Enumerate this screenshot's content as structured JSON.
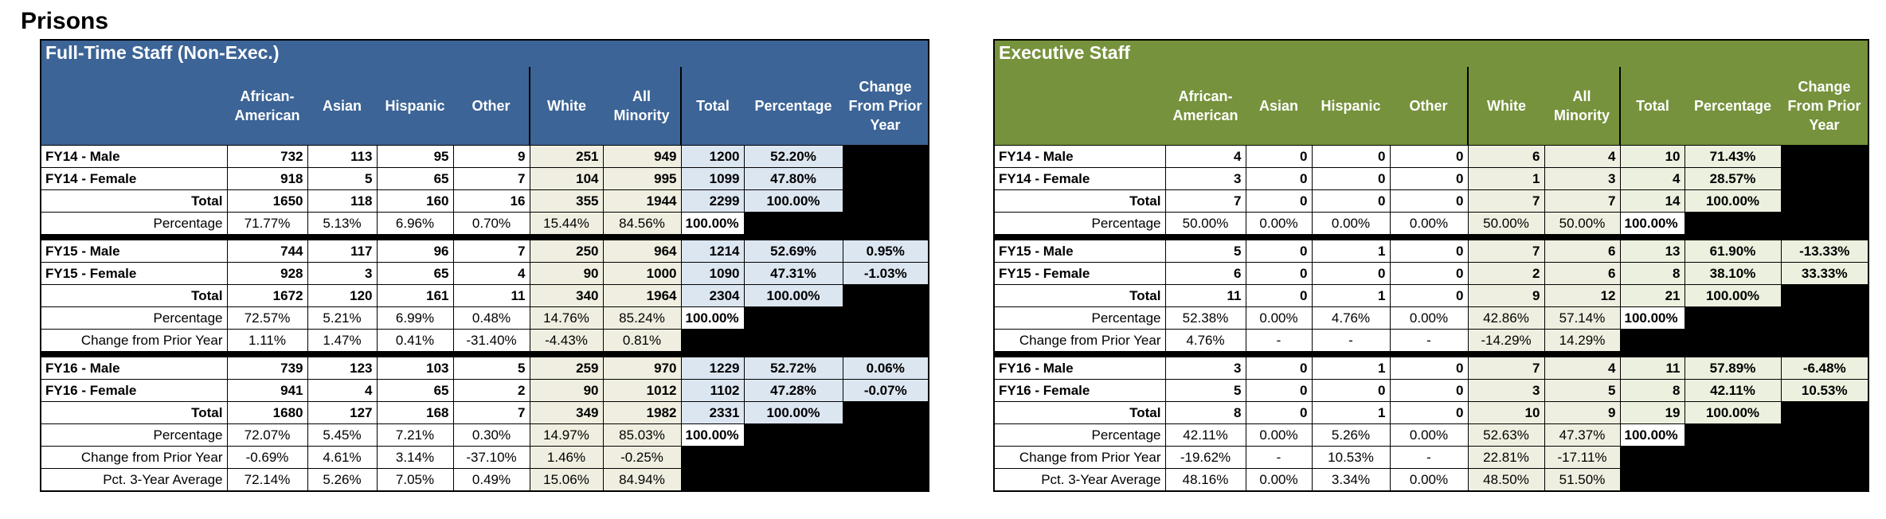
{
  "title": "Prisons",
  "tables": [
    {
      "title": "Full-Time Staff (Non-Exec.)",
      "columns": [
        "African-American",
        "Asian",
        "Hispanic",
        "Other",
        "White",
        "All Minority",
        "Total",
        "Percentage",
        "Change From Prior Year"
      ],
      "groups": [
        [
          {
            "label": "FY14 - Male",
            "cells": [
              732,
              113,
              95,
              9,
              251,
              949,
              1200,
              "52.20%"
            ]
          },
          {
            "label": "FY14 - Female",
            "cells": [
              918,
              5,
              65,
              7,
              104,
              995,
              1099,
              "47.80%"
            ]
          },
          {
            "label": "Total",
            "cells": [
              1650,
              118,
              160,
              16,
              355,
              1944,
              2299,
              "100.00%"
            ]
          },
          {
            "label": "Percentage",
            "cells": [
              "71.77%",
              "5.13%",
              "6.96%",
              "0.70%",
              "15.44%",
              "84.56%",
              "100.00%"
            ]
          }
        ],
        [
          {
            "label": "FY15 - Male",
            "cells": [
              744,
              117,
              96,
              7,
              250,
              964,
              1214,
              "52.69%",
              "0.95%"
            ]
          },
          {
            "label": "FY15 - Female",
            "cells": [
              928,
              3,
              65,
              4,
              90,
              1000,
              1090,
              "47.31%",
              "-1.03%"
            ]
          },
          {
            "label": "Total",
            "cells": [
              1672,
              120,
              161,
              11,
              340,
              1964,
              2304,
              "100.00%"
            ]
          },
          {
            "label": "Percentage",
            "cells": [
              "72.57%",
              "5.21%",
              "6.99%",
              "0.48%",
              "14.76%",
              "85.24%",
              "100.00%"
            ]
          },
          {
            "label": "Change from Prior Year",
            "cells": [
              "1.11%",
              "1.47%",
              "0.41%",
              "-31.40%",
              "-4.43%",
              "0.81%"
            ]
          }
        ],
        [
          {
            "label": "FY16 - Male",
            "cells": [
              739,
              123,
              103,
              5,
              259,
              970,
              1229,
              "52.72%",
              "0.06%"
            ]
          },
          {
            "label": "FY16 - Female",
            "cells": [
              941,
              4,
              65,
              2,
              90,
              1012,
              1102,
              "47.28%",
              "-0.07%"
            ]
          },
          {
            "label": "Total",
            "cells": [
              1680,
              127,
              168,
              7,
              349,
              1982,
              2331,
              "100.00%"
            ]
          },
          {
            "label": "Percentage",
            "cells": [
              "72.07%",
              "5.45%",
              "7.21%",
              "0.30%",
              "14.97%",
              "85.03%",
              "100.00%"
            ]
          },
          {
            "label": "Change from Prior Year",
            "cells": [
              "-0.69%",
              "4.61%",
              "3.14%",
              "-37.10%",
              "1.46%",
              "-0.25%"
            ]
          },
          {
            "label": "Pct. 3-Year Average",
            "cells": [
              "72.14%",
              "5.26%",
              "7.05%",
              "0.49%",
              "15.06%",
              "84.94%"
            ]
          }
        ]
      ]
    },
    {
      "title": "Executive Staff",
      "columns": [
        "African-American",
        "Asian",
        "Hispanic",
        "Other",
        "White",
        "All Minority",
        "Total",
        "Percentage",
        "Change From Prior Year"
      ],
      "groups": [
        [
          {
            "label": "FY14 - Male",
            "cells": [
              4,
              0,
              0,
              0,
              6,
              4,
              10,
              "71.43%"
            ]
          },
          {
            "label": "FY14 - Female",
            "cells": [
              3,
              0,
              0,
              0,
              1,
              3,
              4,
              "28.57%"
            ]
          },
          {
            "label": "Total",
            "cells": [
              7,
              0,
              0,
              0,
              7,
              7,
              14,
              "100.00%"
            ]
          },
          {
            "label": "Percentage",
            "cells": [
              "50.00%",
              "0.00%",
              "0.00%",
              "0.00%",
              "50.00%",
              "50.00%",
              "100.00%"
            ]
          }
        ],
        [
          {
            "label": "FY15 - Male",
            "cells": [
              5,
              0,
              1,
              0,
              7,
              6,
              13,
              "61.90%",
              "-13.33%"
            ]
          },
          {
            "label": "FY15 - Female",
            "cells": [
              6,
              0,
              0,
              0,
              2,
              6,
              8,
              "38.10%",
              "33.33%"
            ]
          },
          {
            "label": "Total",
            "cells": [
              11,
              0,
              1,
              0,
              9,
              12,
              21,
              "100.00%"
            ]
          },
          {
            "label": "Percentage",
            "cells": [
              "52.38%",
              "0.00%",
              "4.76%",
              "0.00%",
              "42.86%",
              "57.14%",
              "100.00%"
            ]
          },
          {
            "label": "Change from Prior Year",
            "cells": [
              "4.76%",
              "-",
              "-",
              "-",
              "-14.29%",
              "14.29%"
            ]
          }
        ],
        [
          {
            "label": "FY16 - Male",
            "cells": [
              3,
              0,
              1,
              0,
              7,
              4,
              11,
              "57.89%",
              "-6.48%"
            ]
          },
          {
            "label": "FY16 - Female",
            "cells": [
              5,
              0,
              0,
              0,
              3,
              5,
              8,
              "42.11%",
              "10.53%"
            ]
          },
          {
            "label": "Total",
            "cells": [
              8,
              0,
              1,
              0,
              10,
              9,
              19,
              "100.00%"
            ]
          },
          {
            "label": "Percentage",
            "cells": [
              "42.11%",
              "0.00%",
              "5.26%",
              "0.00%",
              "52.63%",
              "47.37%",
              "100.00%"
            ]
          },
          {
            "label": "Change from Prior Year",
            "cells": [
              "-19.62%",
              "-",
              "10.53%",
              "-",
              "22.81%",
              "-17.11%"
            ]
          },
          {
            "label": "Pct. 3-Year Average",
            "cells": [
              "48.16%",
              "0.00%",
              "3.34%",
              "0.00%",
              "48.50%",
              "51.50%"
            ]
          }
        ]
      ]
    }
  ]
}
